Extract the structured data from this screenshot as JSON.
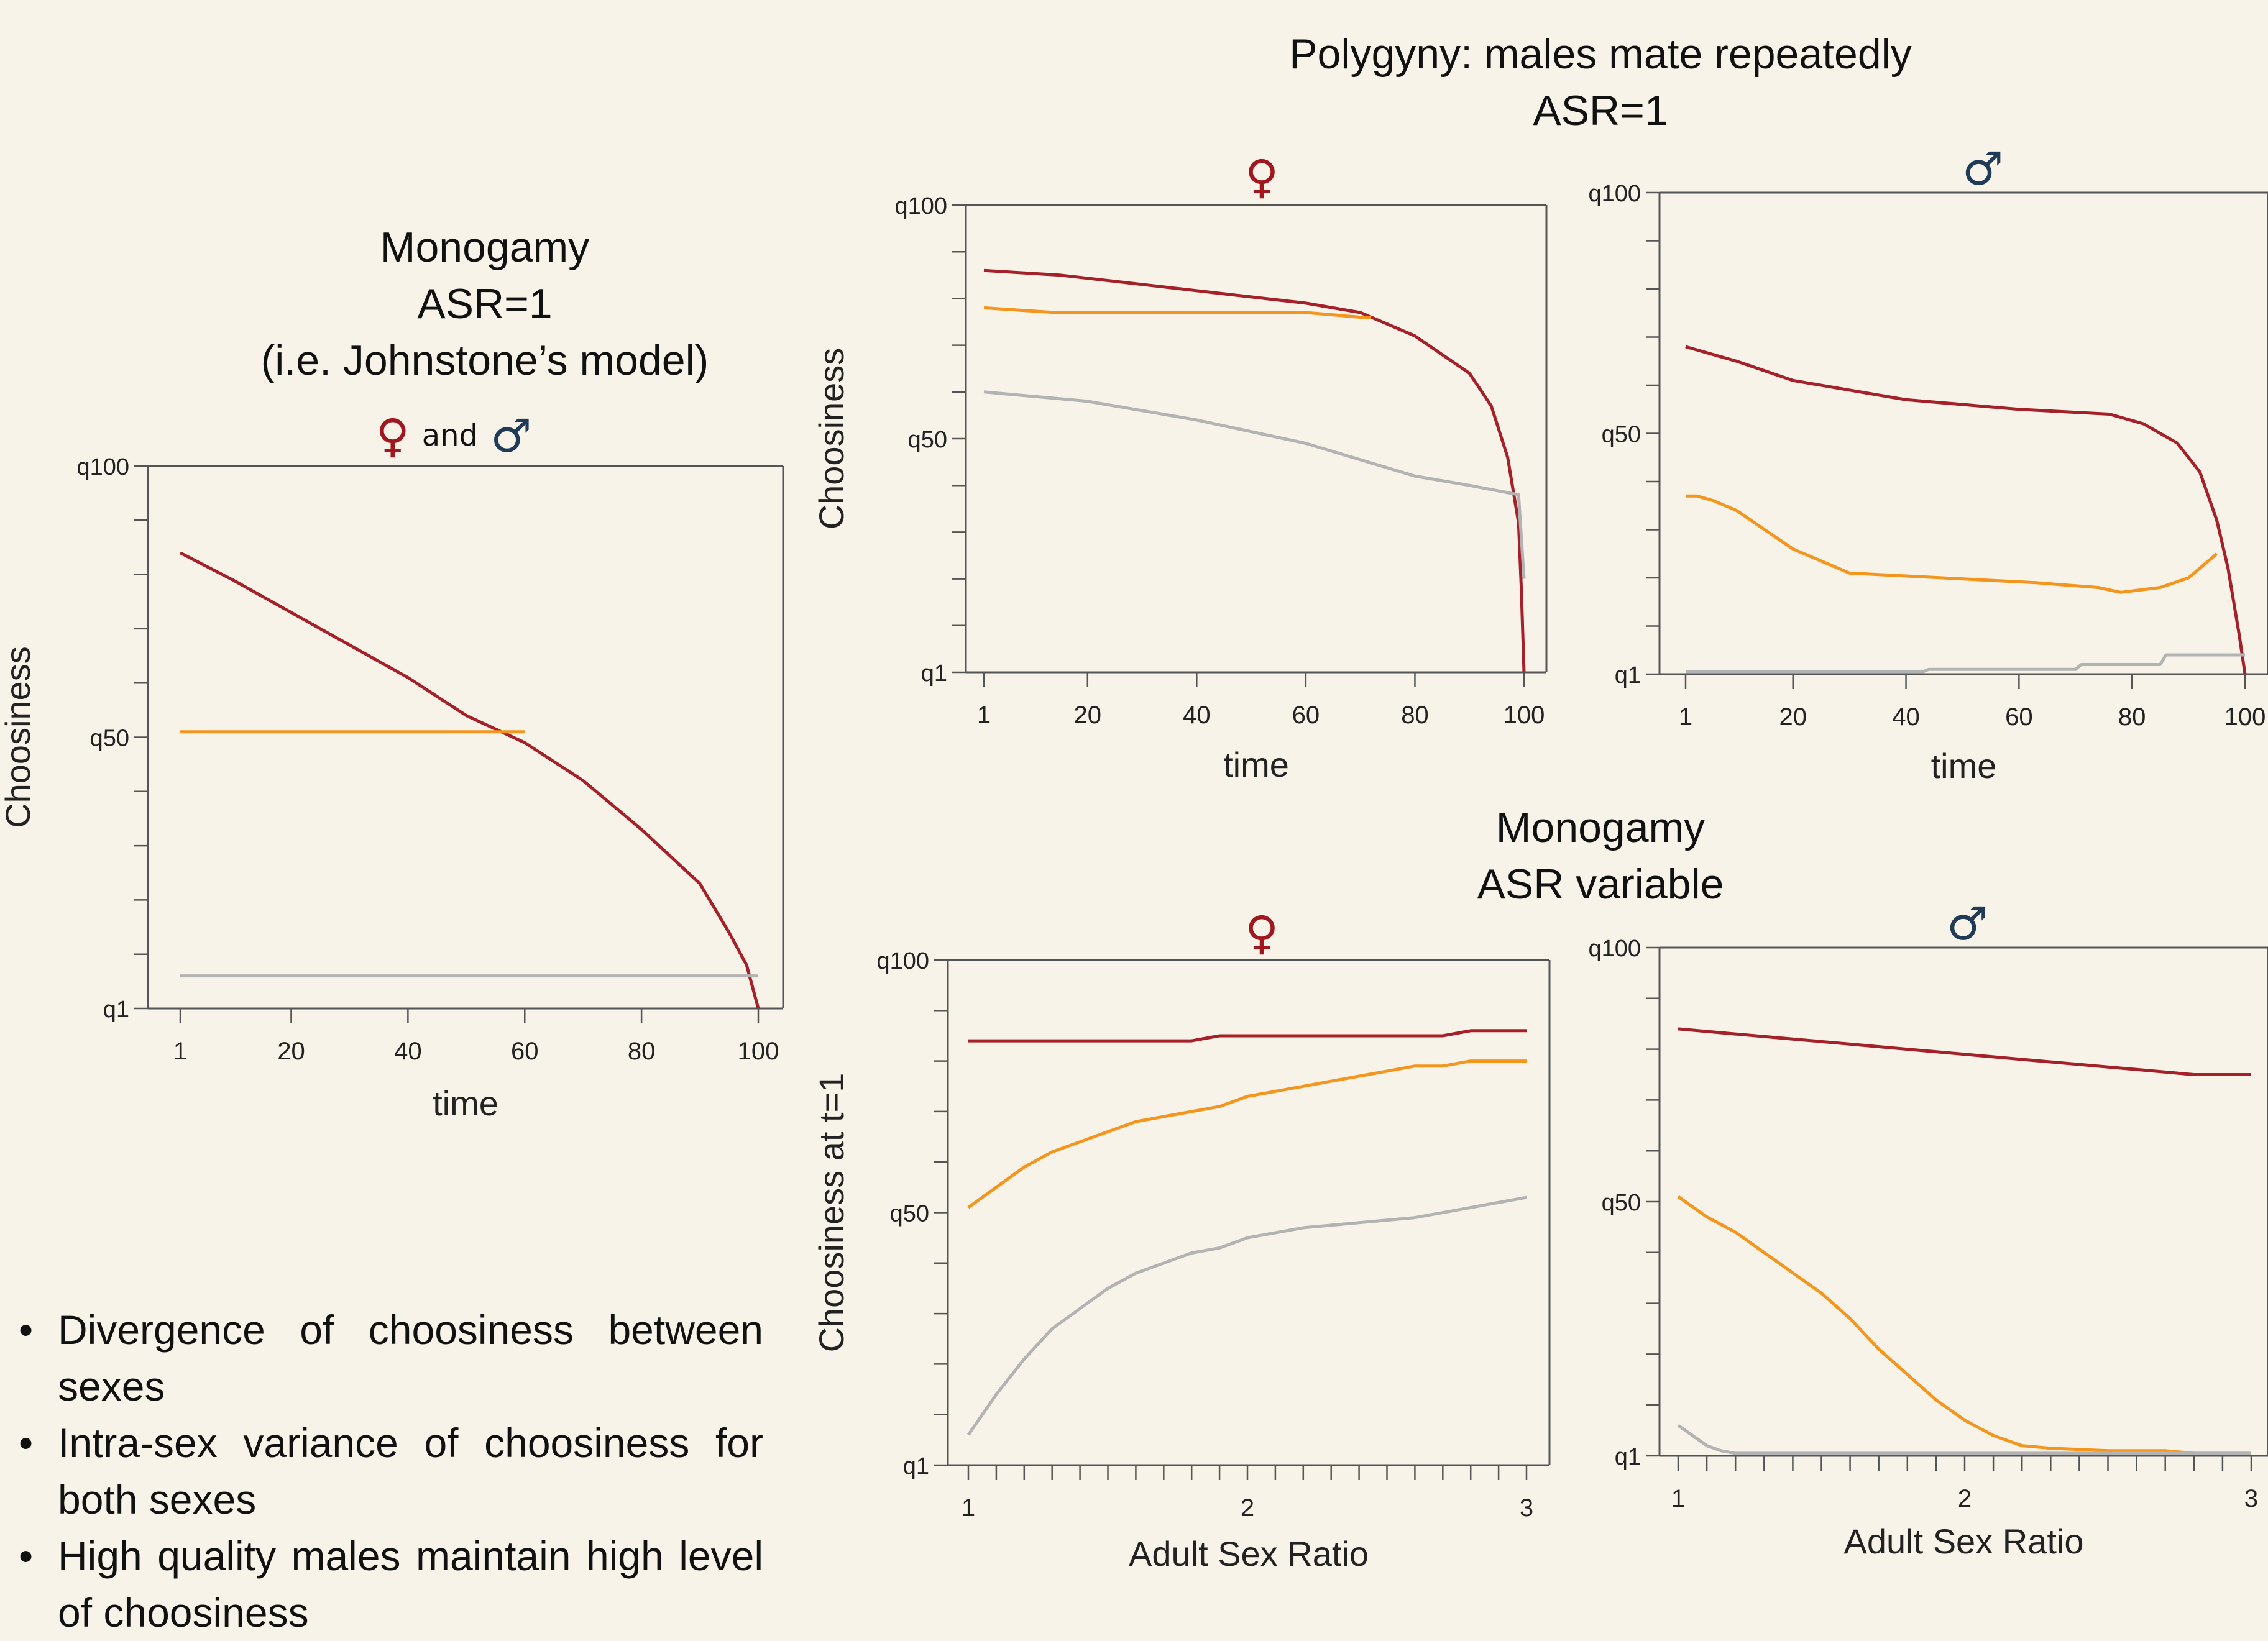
{
  "headings": {
    "monogamy_asr1": [
      "Monogamy",
      "ASR=1",
      "(i.e. Johnstone’s model)"
    ],
    "polygyny": [
      "Polygyny: males mate repeatedly",
      "ASR=1"
    ],
    "monogamy_asr_var": [
      "Monogamy",
      "ASR variable"
    ]
  },
  "symbols": {
    "female": "♀",
    "male": "♂",
    "and": "and"
  },
  "colors": {
    "high": "#a52028",
    "mid": "#f4951d",
    "low": "#b3b3b3",
    "female": "#a0171f",
    "male": "#1f3b57"
  },
  "bullets": [
    "Divergence of choosiness between sexes",
    "Intra-sex variance of choosiness for both sexes",
    "High quality males maintain high level of choosiness"
  ],
  "chart_data": [
    {
      "id": "mono_asr1",
      "type": "line",
      "title": "",
      "xlabel": "time",
      "ylabel": "Choosiness",
      "xlim": [
        1,
        100
      ],
      "ylim": [
        0,
        100
      ],
      "xticks": [
        "1",
        "20",
        "40",
        "60",
        "80",
        "100"
      ],
      "yticks": [
        "q1",
        "q50",
        "q100"
      ],
      "series": [
        {
          "color": "#a52028",
          "x": [
            1,
            10,
            20,
            30,
            40,
            50,
            60,
            70,
            80,
            90,
            95,
            98,
            99,
            100
          ],
          "y": [
            84,
            79,
            73,
            67,
            61,
            54,
            49,
            42,
            33,
            23,
            14,
            8,
            4,
            0
          ]
        },
        {
          "color": "#f4951d",
          "x": [
            1,
            60
          ],
          "y": [
            51,
            51
          ]
        },
        {
          "color": "#b3b3b3",
          "x": [
            1,
            100
          ],
          "y": [
            6,
            6
          ]
        }
      ]
    },
    {
      "id": "poly_female",
      "type": "line",
      "title": "",
      "xlabel": "time",
      "ylabel": "Choosiness",
      "xlim": [
        1,
        100
      ],
      "ylim": [
        0,
        100
      ],
      "xticks": [
        "1",
        "20",
        "40",
        "60",
        "80",
        "100"
      ],
      "yticks": [
        "q1",
        "q50",
        "q100"
      ],
      "series": [
        {
          "color": "#a52028",
          "x": [
            1,
            15,
            30,
            45,
            60,
            70,
            80,
            90,
            94,
            97,
            99,
            99.5,
            100
          ],
          "y": [
            86,
            85,
            83,
            81,
            79,
            77,
            72,
            64,
            57,
            46,
            32,
            18,
            0
          ]
        },
        {
          "color": "#f4951d",
          "x": [
            1,
            14,
            60,
            70,
            72
          ],
          "y": [
            78,
            77,
            77,
            76,
            76
          ]
        },
        {
          "color": "#b3b3b3",
          "x": [
            1,
            20,
            40,
            60,
            80,
            90,
            99,
            100
          ],
          "y": [
            60,
            58,
            54,
            49,
            42,
            40,
            38,
            20
          ]
        }
      ]
    },
    {
      "id": "poly_male",
      "type": "line",
      "title": "",
      "xlabel": "time",
      "ylabel": "",
      "xlim": [
        1,
        100
      ],
      "ylim": [
        0,
        100
      ],
      "xticks": [
        "1",
        "20",
        "40",
        "60",
        "80",
        "100"
      ],
      "yticks": [
        "q1",
        "q50",
        "q100"
      ],
      "series": [
        {
          "color": "#a52028",
          "x": [
            1,
            10,
            20,
            30,
            40,
            60,
            76,
            82,
            88,
            92,
            95,
            97,
            99,
            100
          ],
          "y": [
            68,
            65,
            61,
            59,
            57,
            55,
            54,
            52,
            48,
            42,
            32,
            22,
            8,
            0
          ]
        },
        {
          "color": "#f4951d",
          "x": [
            1,
            3,
            6,
            10,
            15,
            20,
            30,
            63,
            74,
            78,
            85,
            90,
            94,
            95
          ],
          "y": [
            37,
            37,
            36,
            34,
            30,
            26,
            21,
            19,
            18,
            17,
            18,
            20,
            24,
            25
          ]
        },
        {
          "color": "#b3b3b3",
          "x": [
            1,
            43,
            44,
            70,
            71,
            85,
            86,
            100
          ],
          "y": [
            0.5,
            0.5,
            1,
            1,
            2,
            2,
            4,
            4
          ]
        }
      ]
    },
    {
      "id": "mono_asr_female",
      "type": "line",
      "title": "",
      "xlabel": "Adult Sex Ratio",
      "ylabel": "Choosiness at t=1",
      "xlim": [
        1,
        3
      ],
      "ylim": [
        0,
        100
      ],
      "xticks": [
        "1",
        "2",
        "3"
      ],
      "yticks": [
        "q1",
        "q50",
        "q100"
      ],
      "series": [
        {
          "color": "#a52028",
          "x": [
            1,
            1.8,
            1.9,
            2.0,
            2.5,
            2.7,
            2.8,
            3.0
          ],
          "y": [
            84,
            84,
            85,
            85,
            85,
            85,
            86,
            86
          ]
        },
        {
          "color": "#f4951d",
          "x": [
            1,
            1.1,
            1.2,
            1.3,
            1.4,
            1.5,
            1.6,
            1.7,
            1.8,
            1.9,
            2.0,
            2.1,
            2.2,
            2.3,
            2.4,
            2.5,
            2.6,
            2.7,
            2.8,
            2.9,
            3.0
          ],
          "y": [
            51,
            55,
            59,
            62,
            64,
            66,
            68,
            69,
            70,
            71,
            73,
            74,
            75,
            76,
            77,
            78,
            79,
            79,
            80,
            80,
            80
          ]
        },
        {
          "color": "#b3b3b3",
          "x": [
            1,
            1.1,
            1.2,
            1.3,
            1.4,
            1.5,
            1.6,
            1.7,
            1.8,
            1.9,
            2.0,
            2.2,
            2.4,
            2.6,
            2.8,
            3.0
          ],
          "y": [
            6,
            14,
            21,
            27,
            31,
            35,
            38,
            40,
            42,
            43,
            45,
            47,
            48,
            49,
            51,
            53
          ]
        }
      ]
    },
    {
      "id": "mono_asr_male",
      "type": "line",
      "title": "",
      "xlabel": "Adult Sex Ratio",
      "ylabel": "",
      "xlim": [
        1,
        3
      ],
      "ylim": [
        0,
        100
      ],
      "xticks": [
        "1",
        "2",
        "3"
      ],
      "yticks": [
        "q1",
        "q50",
        "q100"
      ],
      "series": [
        {
          "color": "#a52028",
          "x": [
            1,
            1.2,
            1.4,
            1.6,
            1.8,
            2.0,
            2.2,
            2.4,
            2.6,
            2.8,
            3.0
          ],
          "y": [
            84,
            83,
            82,
            81,
            80,
            79,
            78,
            77,
            76,
            75,
            75
          ]
        },
        {
          "color": "#f4951d",
          "x": [
            1,
            1.1,
            1.2,
            1.3,
            1.4,
            1.5,
            1.6,
            1.7,
            1.8,
            1.9,
            2.0,
            2.1,
            2.2,
            2.3,
            2.5,
            2.7,
            2.8,
            2.9,
            3.0
          ],
          "y": [
            51,
            47,
            44,
            40,
            36,
            32,
            27,
            21,
            16,
            11,
            7,
            4,
            2,
            1.5,
            1,
            1,
            0.5,
            0.5,
            0.5
          ]
        },
        {
          "color": "#b3b3b3",
          "x": [
            1,
            1.05,
            1.1,
            1.15,
            1.2,
            3.0
          ],
          "y": [
            6,
            4,
            2,
            1,
            0.5,
            0.5
          ]
        }
      ]
    }
  ]
}
